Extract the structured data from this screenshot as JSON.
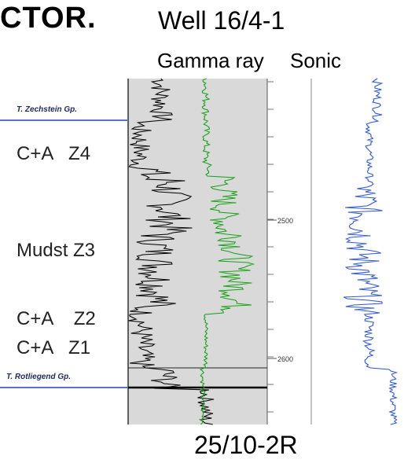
{
  "page": {
    "heading": "CTOR.",
    "well_title": "Well 16/4-1",
    "well_id": "25/10-2R"
  },
  "tracks": {
    "gamma_ray": "Gamma ray",
    "sonic": "Sonic"
  },
  "formation_tops": [
    {
      "name": "T. Zechstein Gp."
    },
    {
      "name": "T. Rotliegend Gp."
    }
  ],
  "zones": [
    {
      "label": "C+A   Z4"
    },
    {
      "label": "Mudst Z3"
    },
    {
      "label": "C+A    Z2"
    },
    {
      "label": "C+A   Z1"
    }
  ],
  "depth_axis": {
    "labels": [
      "2500",
      "2600"
    ]
  },
  "colors": {
    "gamma_ray_curve": "#1aa11a",
    "sonic_curve": "#2f55d4",
    "second_gr_curve": "#000000",
    "formation_top_line": "#5b6fd6",
    "shaded_interval": "#d9d9d9"
  }
}
